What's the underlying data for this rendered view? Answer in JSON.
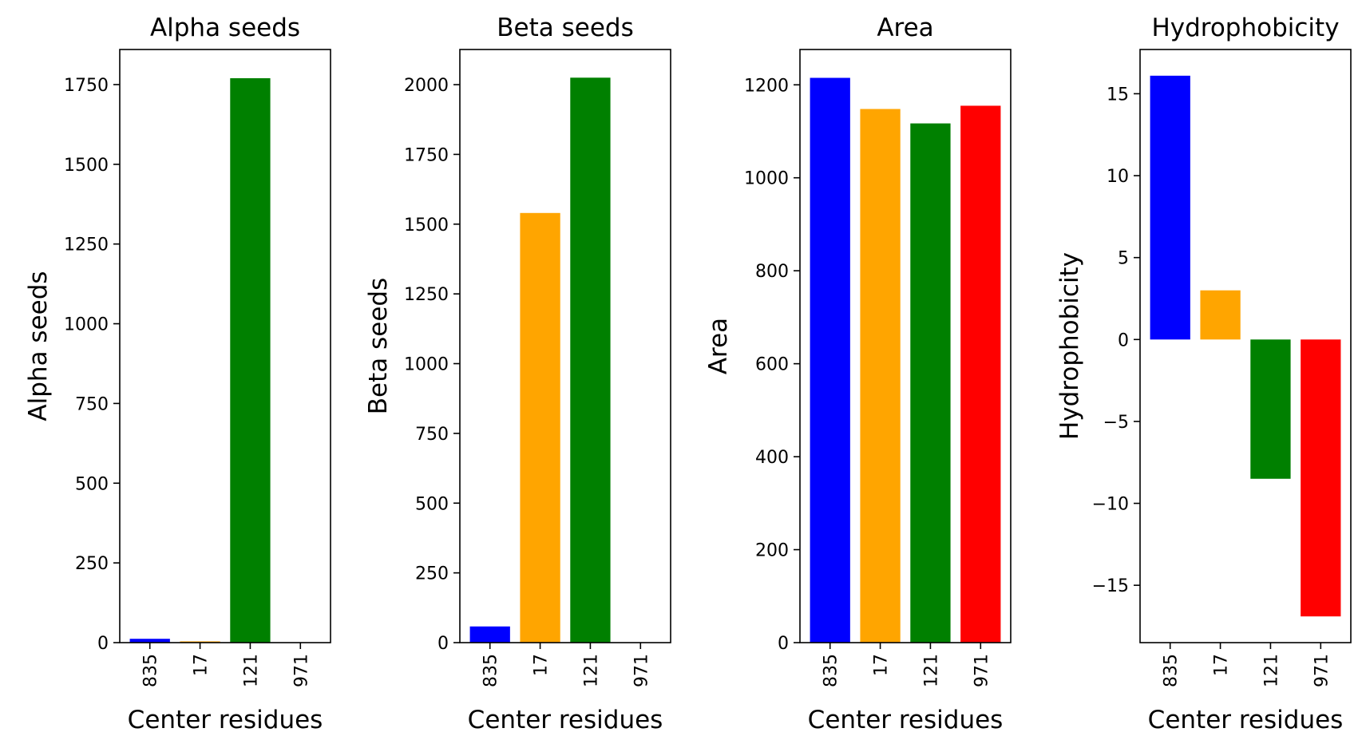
{
  "chart_data": [
    {
      "type": "bar",
      "title": "Alpha seeds",
      "xlabel": "Center residues",
      "ylabel": "Alpha seeds",
      "categories": [
        "835",
        "17",
        "121",
        "971"
      ],
      "values": [
        12,
        4,
        1770,
        0
      ],
      "colors": [
        "#0000ff",
        "#ffa500",
        "#008000",
        "#ff0000"
      ],
      "ylim": [
        0,
        1860
      ],
      "yticks": [
        0,
        250,
        500,
        750,
        1000,
        1250,
        1500,
        1750
      ],
      "ytick_labels": [
        "0",
        "250",
        "500",
        "750",
        "1000",
        "1250",
        "1500",
        "1750"
      ]
    },
    {
      "type": "bar",
      "title": "Beta seeds",
      "xlabel": "Center residues",
      "ylabel": "Beta seeds",
      "categories": [
        "835",
        "17",
        "121",
        "971"
      ],
      "values": [
        58,
        1540,
        2025,
        0
      ],
      "colors": [
        "#0000ff",
        "#ffa500",
        "#008000",
        "#ff0000"
      ],
      "ylim": [
        0,
        2126
      ],
      "yticks": [
        0,
        250,
        500,
        750,
        1000,
        1250,
        1500,
        1750,
        2000
      ],
      "ytick_labels": [
        "0",
        "250",
        "500",
        "750",
        "1000",
        "1250",
        "1500",
        "1750",
        "2000"
      ]
    },
    {
      "type": "bar",
      "title": "Area",
      "xlabel": "Center residues",
      "ylabel": "Area",
      "categories": [
        "835",
        "17",
        "121",
        "971"
      ],
      "values": [
        1215,
        1148,
        1117,
        1155
      ],
      "colors": [
        "#0000ff",
        "#ffa500",
        "#008000",
        "#ff0000"
      ],
      "ylim": [
        0,
        1276
      ],
      "yticks": [
        0,
        200,
        400,
        600,
        800,
        1000,
        1200
      ],
      "ytick_labels": [
        "0",
        "200",
        "400",
        "600",
        "800",
        "1000",
        "1200"
      ]
    },
    {
      "type": "bar",
      "title": "Hydrophobicity",
      "xlabel": "Center residues",
      "ylabel": "Hydrophobicity",
      "categories": [
        "835",
        "17",
        "121",
        "971"
      ],
      "values": [
        16.1,
        3.0,
        -8.5,
        -16.9
      ],
      "colors": [
        "#0000ff",
        "#ffa500",
        "#008000",
        "#ff0000"
      ],
      "ylim": [
        -18.5,
        17.7
      ],
      "yticks": [
        -15,
        -10,
        -5,
        0,
        5,
        10,
        15
      ],
      "ytick_labels": [
        "−15",
        "−10",
        "−5",
        "0",
        "5",
        "10",
        "15"
      ]
    }
  ]
}
